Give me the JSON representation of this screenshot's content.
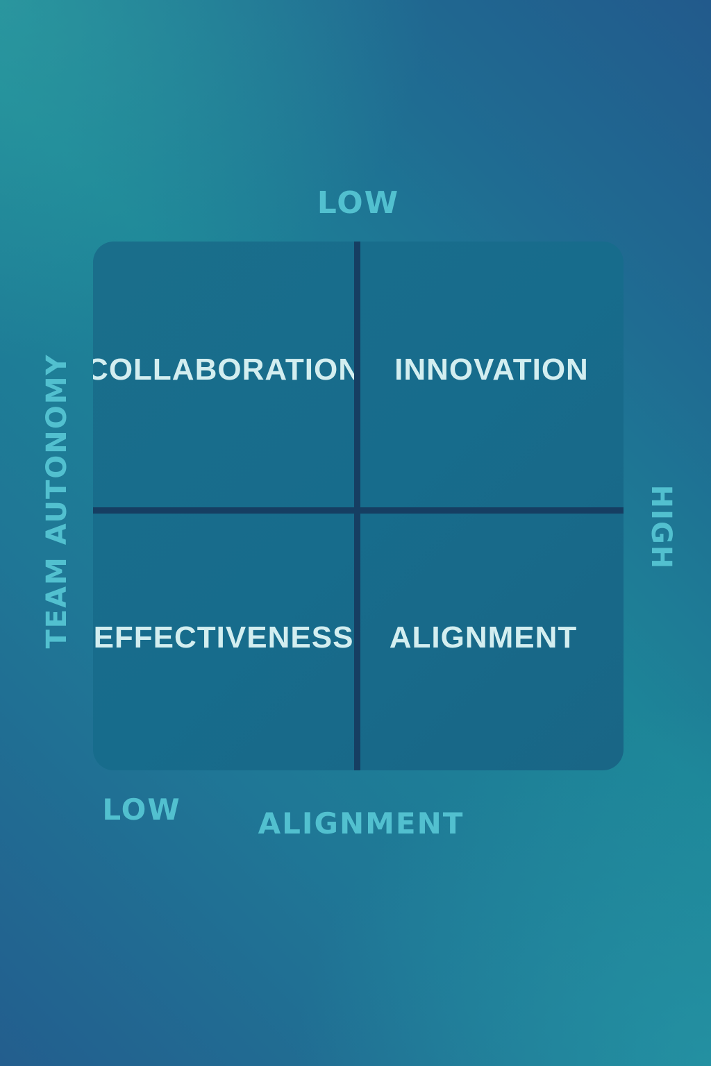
{
  "colors": {
    "axis_label": "#52c0cf",
    "quadrant_text": "#d3eef0",
    "matrix_fill": "#176c8c",
    "divider": "#163e62",
    "background_mid": "#1d8598",
    "background_corner": "#235e8e"
  },
  "axes": {
    "top_label": "LOW",
    "bottom_left_label": "LOW",
    "x_title": "ALIGNMENT",
    "y_title": "TEAM AUTONOMY",
    "right_label": "HIGH"
  },
  "quadrants": {
    "top_left": "COLLABORATION",
    "top_right": "INNOVATION",
    "bottom_left": "EFFECTIVENESS",
    "bottom_right": "ALIGNMENT"
  }
}
